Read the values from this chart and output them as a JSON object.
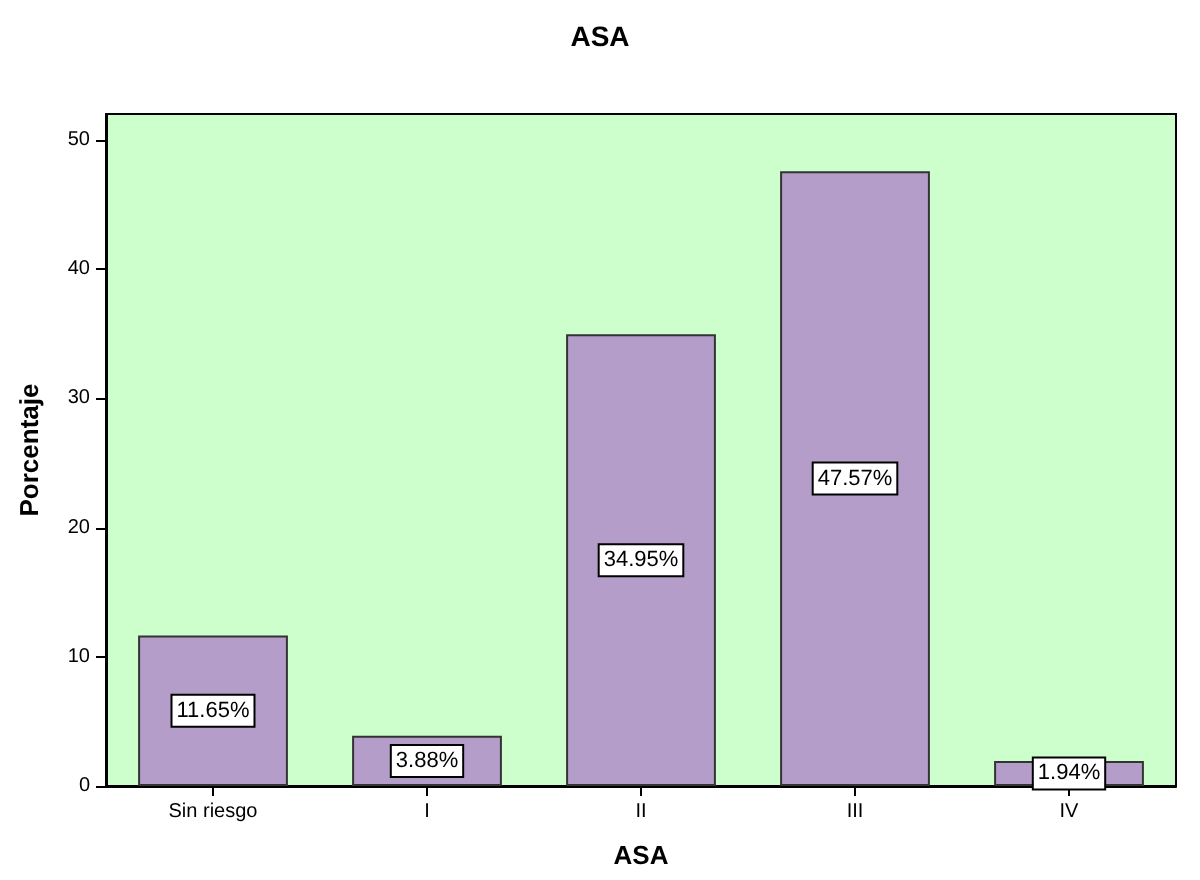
{
  "chart_data": {
    "type": "bar",
    "title": "ASA",
    "xlabel": "ASA",
    "ylabel": "Porcentaje",
    "categories": [
      "Sin riesgo",
      "I",
      "II",
      "III",
      "IV"
    ],
    "values": [
      11.65,
      3.88,
      34.95,
      47.57,
      1.94
    ],
    "value_labels": [
      "11.65%",
      "3.88%",
      "34.95%",
      "47.57%",
      "1.94%"
    ],
    "color": "#b59dc9",
    "ylim": [
      0,
      52
    ],
    "yticks": [
      0,
      10,
      20,
      30,
      40,
      50
    ],
    "grid": false
  }
}
